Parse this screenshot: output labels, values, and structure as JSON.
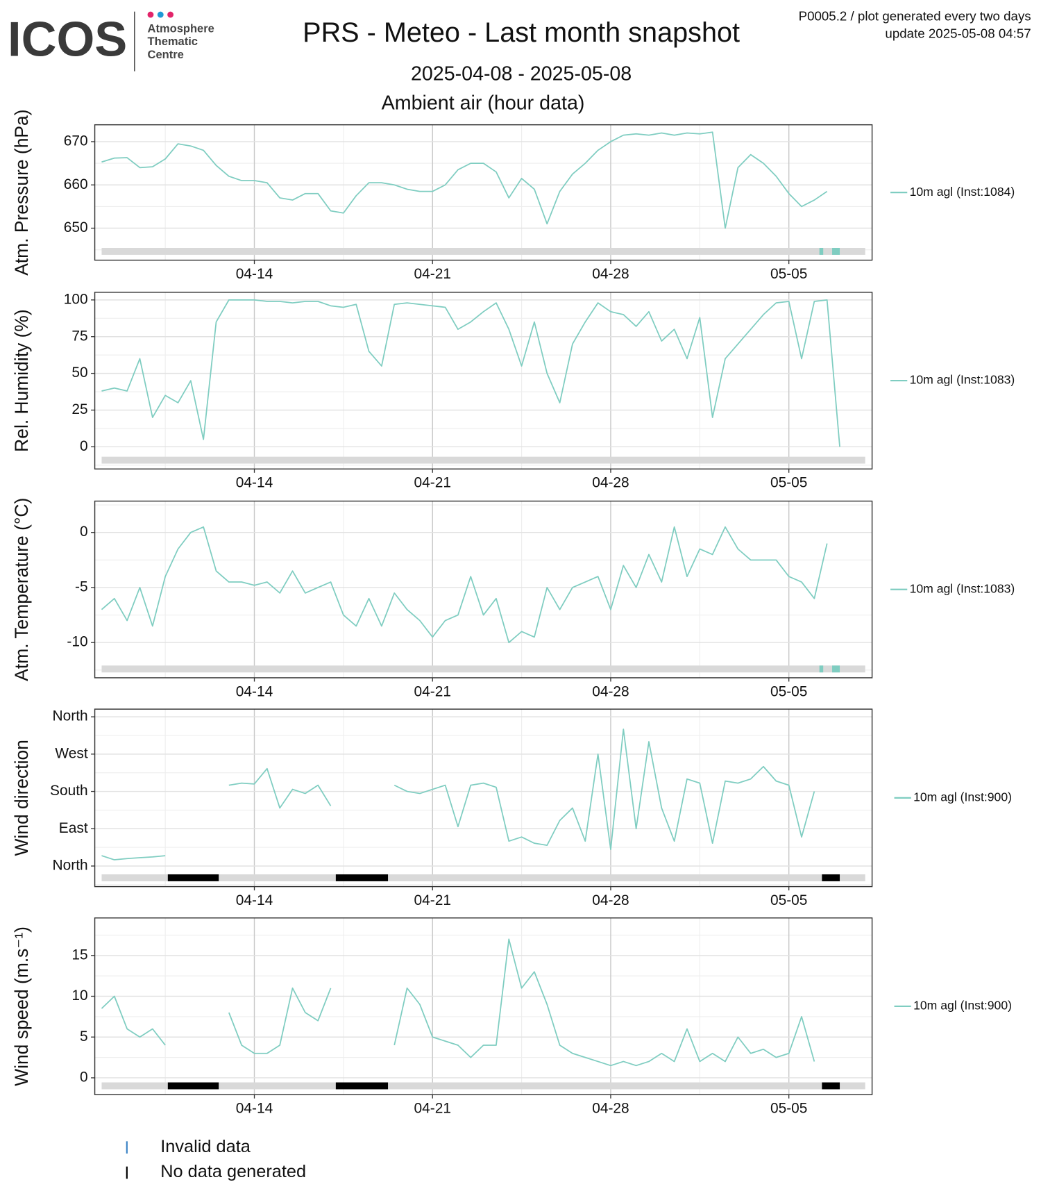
{
  "header": {
    "logo": "ICOS",
    "logo_lines": [
      "Atmosphere",
      "Thematic",
      "Centre"
    ],
    "title": "PRS - Meteo - Last month snapshot",
    "note": "P0005.2 / plot generated every two days",
    "update": "update  2025-05-08 04:57",
    "subtitle": "2025-04-08 - 2025-05-08",
    "section": "Ambient air (hour data)"
  },
  "legend": [
    {
      "label": "Invalid data",
      "color": "#3d85c6"
    },
    {
      "label": "No data generated",
      "color": "#000000"
    }
  ],
  "chart_data": [
    {
      "type": "line",
      "ylabel": "Atm. Pressure (hPa)",
      "x": [
        0,
        0.5,
        1,
        1.5,
        2,
        2.5,
        3,
        3.5,
        4,
        4.5,
        5,
        5.5,
        6,
        6.5,
        7,
        7.5,
        8,
        8.5,
        9,
        9.5,
        10,
        10.5,
        11,
        11.5,
        12,
        12.5,
        13,
        13.5,
        14,
        14.5,
        15,
        15.5,
        16,
        16.5,
        17,
        17.5,
        18,
        18.5,
        19,
        19.5,
        20,
        20.5,
        21,
        21.5,
        22,
        22.5,
        23,
        23.5,
        24,
        24.5,
        25,
        25.5,
        26,
        26.5,
        27,
        27.5,
        28,
        28.5,
        29
      ],
      "series": [
        {
          "name": "10m agl (Inst:1084)",
          "color": "#7fcdc1",
          "values": [
            665.3,
            666.2,
            666.3,
            664,
            664.2,
            666,
            669.5,
            669,
            668,
            664.5,
            662,
            661,
            661,
            660.5,
            657,
            656.5,
            658,
            658,
            654,
            653.5,
            657.5,
            660.5,
            660.5,
            660,
            659,
            658.5,
            658.5,
            660,
            663.5,
            665,
            665,
            663,
            657,
            661.5,
            659,
            651,
            658.5,
            662.5,
            665,
            668,
            670,
            671.5,
            671.8,
            671.5,
            672,
            671.5,
            672,
            671.8,
            672.2,
            650,
            664,
            667,
            665,
            662,
            658,
            655,
            656.5,
            658.5,
            null
          ]
        }
      ],
      "xlim": [
        -0.27,
        30.27
      ],
      "xticks": [
        {
          "value": 6,
          "label": "04-14"
        },
        {
          "value": 13,
          "label": "04-21"
        },
        {
          "value": 20,
          "label": "04-28"
        },
        {
          "value": 27,
          "label": "05-05"
        }
      ],
      "ylim": [
        642.6,
        673.9
      ],
      "yticks": [
        650,
        660,
        670
      ],
      "grid": true,
      "period": [
        0,
        30
      ],
      "invalid": [
        [
          28.2,
          28.35
        ],
        [
          28.7,
          29
        ]
      ]
    },
    {
      "type": "line",
      "ylabel": "Rel. Humidity (%)",
      "x": [
        0,
        0.5,
        1,
        1.5,
        2,
        2.5,
        3,
        3.5,
        4,
        4.5,
        5,
        5.5,
        6,
        6.5,
        7,
        7.5,
        8,
        8.5,
        9,
        9.5,
        10,
        10.5,
        11,
        11.5,
        12,
        12.5,
        13,
        13.5,
        14,
        14.5,
        15,
        15.5,
        16,
        16.5,
        17,
        17.5,
        18,
        18.5,
        19,
        19.5,
        20,
        20.5,
        21,
        21.5,
        22,
        22.5,
        23,
        23.5,
        24,
        24.5,
        25,
        25.5,
        26,
        26.5,
        27,
        27.5,
        28,
        28.5,
        29
      ],
      "series": [
        {
          "name": "10m agl (Inst:1083)",
          "color": "#7fcdc1",
          "values": [
            38,
            40,
            38,
            60,
            20,
            35,
            30,
            45,
            5,
            85,
            100,
            100,
            100,
            99,
            99,
            98,
            99,
            99,
            96,
            95,
            97,
            65,
            55,
            97,
            98,
            97,
            96,
            95,
            80,
            85,
            92,
            98,
            80,
            55,
            85,
            50,
            30,
            70,
            85,
            98,
            92,
            90,
            82,
            92,
            72,
            80,
            60,
            88,
            20,
            60,
            70,
            80,
            90,
            98,
            99,
            60,
            99,
            100,
            0
          ]
        }
      ],
      "xlim": [
        -0.27,
        30.27
      ],
      "xticks": [
        {
          "value": 6,
          "label": "04-14"
        },
        {
          "value": 13,
          "label": "04-21"
        },
        {
          "value": 20,
          "label": "04-28"
        },
        {
          "value": 27,
          "label": "05-05"
        }
      ],
      "ylim": [
        -15.1,
        105.2
      ],
      "yticks": [
        0,
        25,
        50,
        75,
        100
      ],
      "grid": true,
      "period": [
        0,
        30
      ]
    },
    {
      "type": "line",
      "ylabel": "Atm. Temperature (°C)",
      "x": [
        0,
        0.5,
        1,
        1.5,
        2,
        2.5,
        3,
        3.5,
        4,
        4.5,
        5,
        5.5,
        6,
        6.5,
        7,
        7.5,
        8,
        8.5,
        9,
        9.5,
        10,
        10.5,
        11,
        11.5,
        12,
        12.5,
        13,
        13.5,
        14,
        14.5,
        15,
        15.5,
        16,
        16.5,
        17,
        17.5,
        18,
        18.5,
        19,
        19.5,
        20,
        20.5,
        21,
        21.5,
        22,
        22.5,
        23,
        23.5,
        24,
        24.5,
        25,
        25.5,
        26,
        26.5,
        27,
        27.5,
        28,
        28.5,
        29
      ],
      "series": [
        {
          "name": "10m agl (Inst:1083)",
          "color": "#7fcdc1",
          "values": [
            -7,
            -6,
            -8,
            -5,
            -8.5,
            -4,
            -1.5,
            0,
            0.5,
            -3.5,
            -4.5,
            -4.5,
            -4.8,
            -4.5,
            -5.5,
            -3.5,
            -5.5,
            -5,
            -4.5,
            -7.5,
            -8.5,
            -6,
            -8.5,
            -5.5,
            -7,
            -8,
            -9.5,
            -8,
            -7.5,
            -4,
            -7.5,
            -6,
            -10,
            -9,
            -9.5,
            -5,
            -7,
            -5,
            -4.5,
            -4,
            -7,
            -3,
            -5,
            -2,
            -4.5,
            0.5,
            -4,
            -1.5,
            -2,
            0.5,
            -1.5,
            -2.5,
            -2.5,
            -2.5,
            -4,
            -4.5,
            -6,
            -1,
            null
          ]
        }
      ],
      "xlim": [
        -0.27,
        30.27
      ],
      "xticks": [
        {
          "value": 6,
          "label": "04-14"
        },
        {
          "value": 13,
          "label": "04-21"
        },
        {
          "value": 20,
          "label": "04-28"
        },
        {
          "value": 27,
          "label": "05-05"
        }
      ],
      "ylim": [
        -13.2,
        2.85
      ],
      "yticks": [
        -10,
        -5,
        0
      ],
      "grid": true,
      "period": [
        0,
        30
      ],
      "invalid": [
        [
          28.2,
          28.35
        ],
        [
          28.7,
          29
        ]
      ]
    },
    {
      "type": "line",
      "ylabel": "Wind direction",
      "x": [
        0,
        0.5,
        1,
        1.5,
        2,
        2.5,
        3,
        3.5,
        4,
        4.5,
        5,
        5.5,
        6,
        6.5,
        7,
        7.5,
        8,
        8.5,
        9,
        9.5,
        10,
        10.5,
        11,
        11.5,
        12,
        12.5,
        13,
        13.5,
        14,
        14.5,
        15,
        15.5,
        16,
        16.5,
        17,
        17.5,
        18,
        18.5,
        19,
        19.5,
        20,
        20.5,
        21,
        21.5,
        22,
        22.5,
        23,
        23.5,
        24,
        24.5,
        25,
        25.5,
        26,
        26.5,
        27,
        27.5,
        28,
        28.5,
        29
      ],
      "series": [
        {
          "name": "10m agl (Inst:900)",
          "color": "#7fcdc1",
          "values": [
            25,
            15,
            18,
            20,
            22,
            25,
            null,
            null,
            null,
            null,
            195,
            200,
            198,
            235,
            140,
            185,
            175,
            195,
            145,
            null,
            null,
            null,
            null,
            195,
            180,
            175,
            185,
            195,
            95,
            195,
            200,
            190,
            60,
            70,
            55,
            50,
            110,
            140,
            60,
            270,
            40,
            330,
            90,
            300,
            140,
            60,
            210,
            200,
            55,
            205,
            200,
            210,
            240,
            205,
            195,
            70,
            180,
            null,
            null
          ]
        }
      ],
      "xlim": [
        -0.27,
        30.27
      ],
      "xticks": [
        {
          "value": 6,
          "label": "04-14"
        },
        {
          "value": 13,
          "label": "04-21"
        },
        {
          "value": 20,
          "label": "04-28"
        },
        {
          "value": 27,
          "label": "05-05"
        }
      ],
      "ylim": [
        -49.6,
        378.5
      ],
      "yticks": [
        {
          "value": 0,
          "label": "North"
        },
        {
          "value": 90,
          "label": "East"
        },
        {
          "value": 180,
          "label": "South"
        },
        {
          "value": 270,
          "label": "West"
        },
        {
          "value": 360,
          "label": "North"
        }
      ],
      "grid": true,
      "period": [
        0,
        30
      ],
      "no_data": [
        [
          2.6,
          4.6
        ],
        [
          9.2,
          11.25
        ],
        [
          28.3,
          29
        ]
      ]
    },
    {
      "type": "line",
      "ylabel": "Wind speed (m.s⁻¹)",
      "x": [
        0,
        0.5,
        1,
        1.5,
        2,
        2.5,
        3,
        3.5,
        4,
        4.5,
        5,
        5.5,
        6,
        6.5,
        7,
        7.5,
        8,
        8.5,
        9,
        9.5,
        10,
        10.5,
        11,
        11.5,
        12,
        12.5,
        13,
        13.5,
        14,
        14.5,
        15,
        15.5,
        16,
        16.5,
        17,
        17.5,
        18,
        18.5,
        19,
        19.5,
        20,
        20.5,
        21,
        21.5,
        22,
        22.5,
        23,
        23.5,
        24,
        24.5,
        25,
        25.5,
        26,
        26.5,
        27,
        27.5,
        28,
        28.5,
        29
      ],
      "series": [
        {
          "name": "10m agl (Inst:900)",
          "color": "#7fcdc1",
          "values": [
            8.5,
            10,
            6,
            5,
            6,
            4,
            null,
            null,
            null,
            null,
            8,
            4,
            3,
            3,
            4,
            11,
            8,
            7,
            11,
            null,
            null,
            null,
            null,
            4,
            11,
            9,
            5,
            4.5,
            4,
            2.5,
            4,
            4,
            17,
            11,
            13,
            9,
            4,
            3,
            2.5,
            2,
            1.5,
            2,
            1.5,
            2,
            3,
            2,
            6,
            2,
            3,
            2,
            5,
            3,
            3.5,
            2.5,
            3,
            7.5,
            2,
            null,
            null
          ]
        }
      ],
      "xlim": [
        -0.27,
        30.27
      ],
      "xticks": [
        {
          "value": 6,
          "label": "04-14"
        },
        {
          "value": 13,
          "label": "04-21"
        },
        {
          "value": 20,
          "label": "04-28"
        },
        {
          "value": 27,
          "label": "05-05"
        }
      ],
      "ylim": [
        -2.06,
        19.6
      ],
      "yticks": [
        0,
        5,
        10,
        15
      ],
      "grid": true,
      "period": [
        0,
        30
      ],
      "no_data": [
        [
          2.6,
          4.6
        ],
        [
          9.2,
          11.25
        ],
        [
          28.3,
          29
        ]
      ]
    }
  ]
}
